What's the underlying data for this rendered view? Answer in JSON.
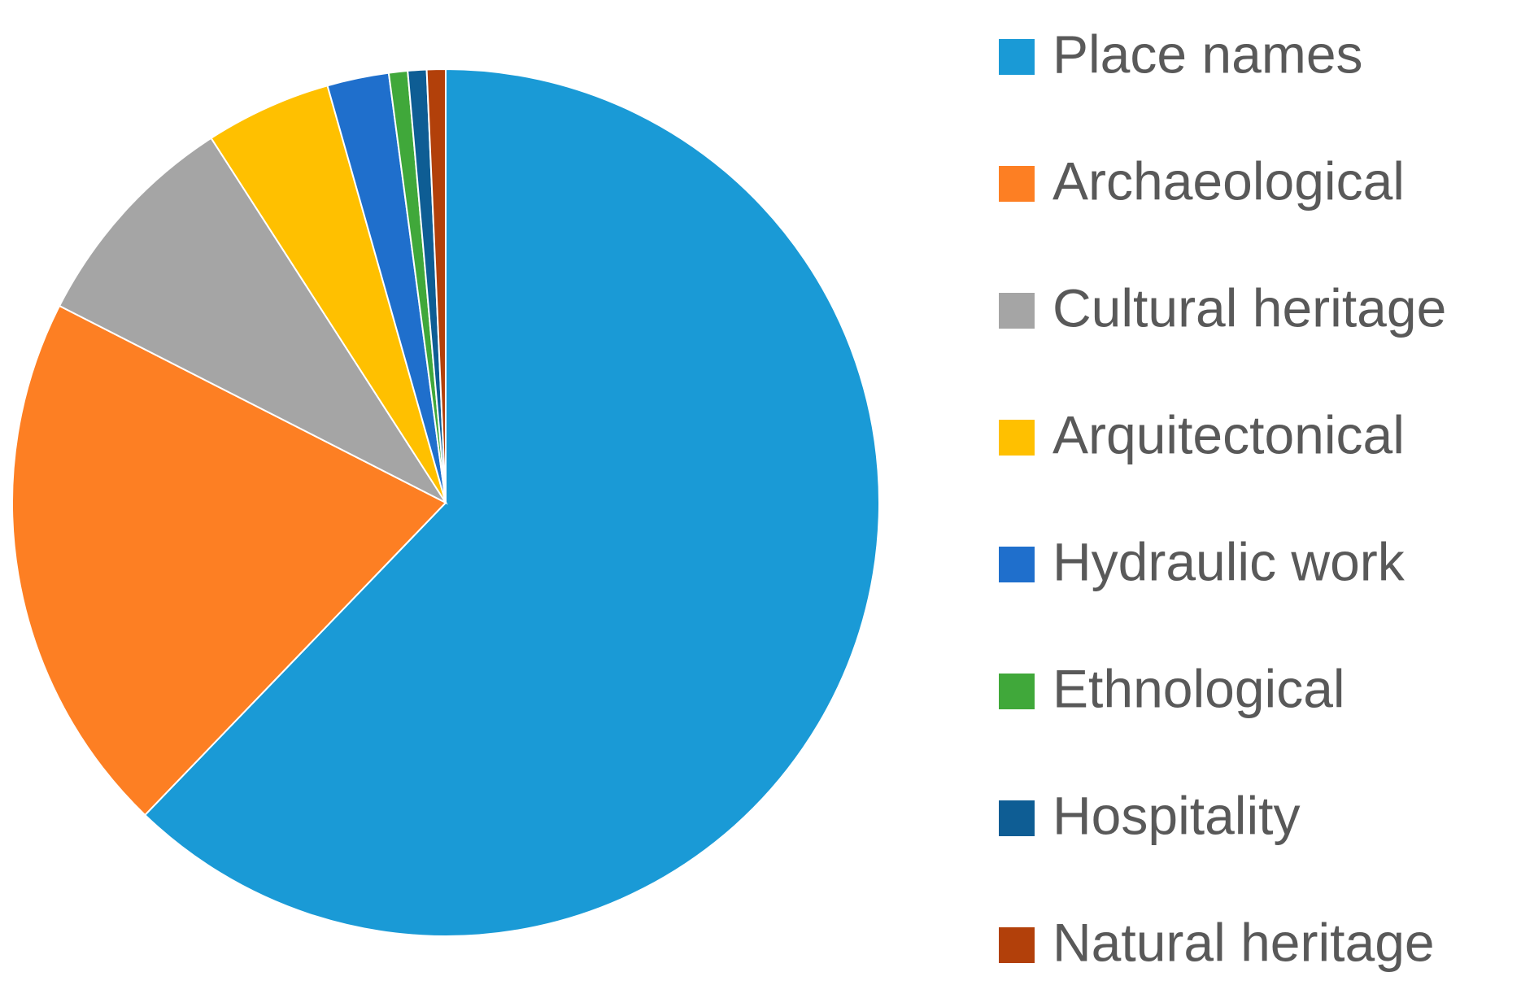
{
  "chart_data": {
    "type": "pie",
    "categories": [
      "Place names",
      "Archaeological",
      "Cultural heritage",
      "Arquitectonical",
      "Hydraulic work",
      "Ethnological",
      "Hospitality",
      "Natural heritage"
    ],
    "values": [
      62.2,
      20.3,
      8.4,
      4.7,
      2.3,
      0.7,
      0.7,
      0.7
    ],
    "colors": [
      "#1a9ad6",
      "#fd7f23",
      "#a5a5a5",
      "#ffc000",
      "#1f6fcc",
      "#40a83a",
      "#0e5d94",
      "#b2400a"
    ],
    "legend": "right"
  }
}
